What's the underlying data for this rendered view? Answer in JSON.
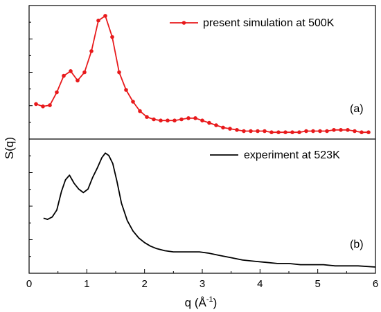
{
  "chart_data": {
    "type": "line",
    "ylabel": "S(q)",
    "xlabel_main": "q (",
    "xlabel_unit": "Å",
    "xlabel_exp": "-1",
    "xlabel_close": ")",
    "xlim": [
      0,
      6
    ],
    "x_ticks": [
      "0",
      "1",
      "2",
      "3",
      "4",
      "5",
      "6"
    ],
    "grid": false,
    "panels": [
      {
        "tag": "(a)",
        "legend_position": "top-right",
        "ylim": [
          0,
          1.0
        ],
        "series": [
          {
            "name": "present simulation at 500K",
            "color": "#e8191b",
            "marker": "circle",
            "x": [
              0.12,
              0.24,
              0.36,
              0.48,
              0.6,
              0.72,
              0.84,
              0.96,
              1.08,
              1.2,
              1.32,
              1.44,
              1.56,
              1.68,
              1.8,
              1.92,
              2.04,
              2.16,
              2.28,
              2.4,
              2.52,
              2.64,
              2.76,
              2.88,
              3.0,
              3.12,
              3.24,
              3.36,
              3.48,
              3.6,
              3.72,
              3.84,
              3.96,
              4.08,
              4.2,
              4.32,
              4.44,
              4.56,
              4.68,
              4.8,
              4.92,
              5.04,
              5.16,
              5.28,
              5.4,
              5.52,
              5.64,
              5.76,
              5.88
            ],
            "y": [
              0.28,
              0.26,
              0.27,
              0.38,
              0.52,
              0.56,
              0.48,
              0.55,
              0.73,
              0.99,
              1.03,
              0.85,
              0.55,
              0.4,
              0.3,
              0.22,
              0.17,
              0.15,
              0.14,
              0.14,
              0.14,
              0.15,
              0.16,
              0.16,
              0.14,
              0.12,
              0.1,
              0.08,
              0.07,
              0.06,
              0.05,
              0.05,
              0.05,
              0.05,
              0.04,
              0.04,
              0.04,
              0.04,
              0.04,
              0.05,
              0.05,
              0.05,
              0.05,
              0.06,
              0.06,
              0.06,
              0.05,
              0.04,
              0.04
            ]
          }
        ]
      },
      {
        "tag": "(b)",
        "legend_position": "top-right",
        "ylim": [
          0,
          1.0
        ],
        "series": [
          {
            "name": "experiment at 523K",
            "color": "#000000",
            "marker": "none",
            "x": [
              0.25,
              0.32,
              0.4,
              0.48,
              0.56,
              0.63,
              0.7,
              0.78,
              0.86,
              0.94,
              1.02,
              1.1,
              1.18,
              1.26,
              1.32,
              1.38,
              1.45,
              1.52,
              1.6,
              1.7,
              1.8,
              1.9,
              2.0,
              2.1,
              2.2,
              2.35,
              2.5,
              2.65,
              2.8,
              2.95,
              3.1,
              3.3,
              3.5,
              3.7,
              3.9,
              4.1,
              4.3,
              4.5,
              4.7,
              4.9,
              5.1,
              5.3,
              5.5,
              5.7,
              6.0
            ],
            "y": [
              0.45,
              0.44,
              0.46,
              0.52,
              0.68,
              0.78,
              0.82,
              0.75,
              0.7,
              0.67,
              0.7,
              0.8,
              0.88,
              0.97,
              1.01,
              0.99,
              0.92,
              0.77,
              0.58,
              0.43,
              0.34,
              0.28,
              0.24,
              0.21,
              0.19,
              0.17,
              0.16,
              0.16,
              0.16,
              0.16,
              0.15,
              0.13,
              0.11,
              0.09,
              0.08,
              0.07,
              0.06,
              0.06,
              0.05,
              0.05,
              0.05,
              0.04,
              0.04,
              0.04,
              0.03
            ]
          }
        ]
      }
    ]
  }
}
